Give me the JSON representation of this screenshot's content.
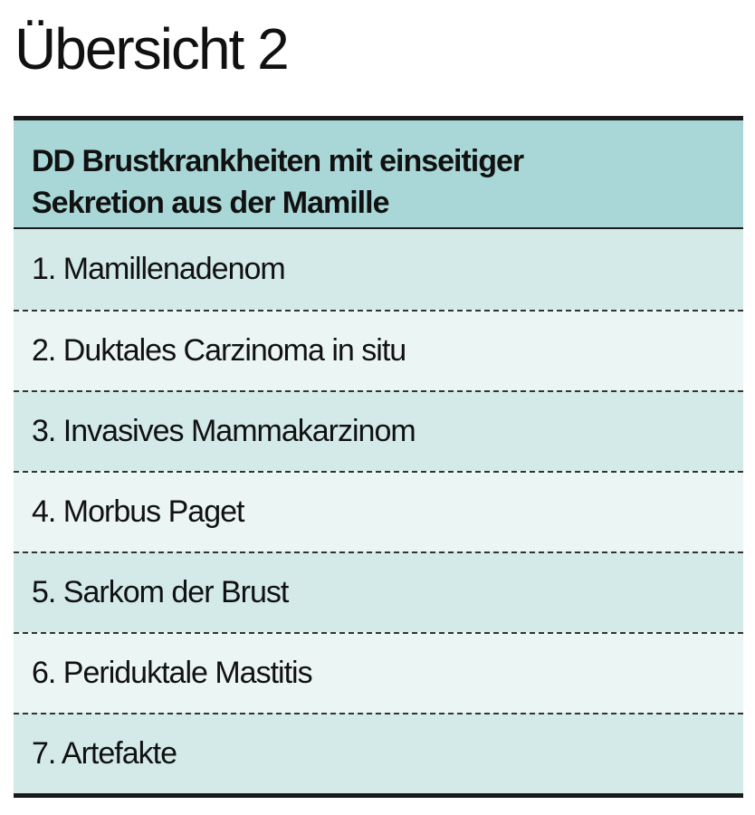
{
  "title": "Übersicht 2",
  "table": {
    "header": "DD Brustkrankheiten mit einseitiger Sekretion aus der Mamille",
    "rows": [
      "1. Mamillenadenom",
      "2. Duktales Carzinoma in situ",
      "3. Invasives Mammakarzinom",
      "4. Morbus Paget",
      "5. Sarkom der Brust",
      "6. Periduktale Mastitis",
      "7. Artefakte"
    ]
  },
  "colors": {
    "header_bg": "#a9d7d7",
    "row_bg_odd": "#d3eae9",
    "row_bg_even": "#ebf5f4",
    "rule": "#1a1a1a"
  }
}
